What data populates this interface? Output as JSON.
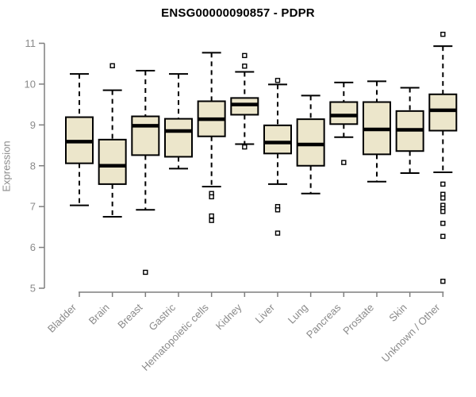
{
  "title": "ENSG00000090857 - PDPR",
  "colors": {
    "box_fill": "#ece6cb",
    "box_stroke": "#000000",
    "median_stroke": "#000000",
    "outlier_stroke": "#000000",
    "outlier_fill": "#ffffff",
    "axis_line": "#7f7f7f",
    "tick_label": "#8a8a8a",
    "title_color": "#000000",
    "background": "#ffffff"
  },
  "chart_data": {
    "type": "boxplot",
    "title": "ENSG00000090857 - PDPR",
    "xlabel": "",
    "ylabel": "Expression",
    "ylim": [
      5,
      11
    ],
    "yticks": [
      5,
      6,
      7,
      8,
      9,
      10,
      11
    ],
    "grid": false,
    "legend": "none",
    "categories": [
      "Bladder",
      "Brain",
      "Breast",
      "Gastric",
      "Hematopoietic cells",
      "Kidney",
      "Liver",
      "Lung",
      "Pancreas",
      "Prostate",
      "Skin",
      "Unknown / Other"
    ],
    "boxes": [
      {
        "category": "Bladder",
        "whisker_low": 7.03,
        "q1": 8.06,
        "median": 8.59,
        "q3": 9.19,
        "whisker_high": 10.25,
        "outliers": []
      },
      {
        "category": "Brain",
        "whisker_low": 6.75,
        "q1": 7.55,
        "median": 8.0,
        "q3": 8.64,
        "whisker_high": 9.85,
        "outliers": [
          10.45
        ]
      },
      {
        "category": "Breast",
        "whisker_low": 6.92,
        "q1": 8.26,
        "median": 8.98,
        "q3": 9.21,
        "whisker_high": 10.33,
        "outliers": [
          5.39
        ]
      },
      {
        "category": "Gastric",
        "whisker_low": 7.93,
        "q1": 8.22,
        "median": 8.85,
        "q3": 9.15,
        "whisker_high": 10.25,
        "outliers": []
      },
      {
        "category": "Hematopoietic cells",
        "whisker_low": 7.49,
        "q1": 8.72,
        "median": 9.14,
        "q3": 9.58,
        "whisker_high": 10.77,
        "outliers": [
          7.32,
          7.24,
          6.77,
          6.66
        ]
      },
      {
        "category": "Kidney",
        "whisker_low": 8.53,
        "q1": 9.25,
        "median": 9.5,
        "q3": 9.66,
        "whisker_high": 10.3,
        "outliers": [
          10.7,
          10.44,
          8.46
        ]
      },
      {
        "category": "Liver",
        "whisker_low": 7.55,
        "q1": 8.3,
        "median": 8.57,
        "q3": 8.99,
        "whisker_high": 9.99,
        "outliers": [
          10.09,
          7.0,
          6.92,
          6.35
        ]
      },
      {
        "category": "Lung",
        "whisker_low": 7.32,
        "q1": 8.0,
        "median": 8.52,
        "q3": 9.14,
        "whisker_high": 9.72,
        "outliers": []
      },
      {
        "category": "Pancreas",
        "whisker_low": 8.7,
        "q1": 9.02,
        "median": 9.23,
        "q3": 9.56,
        "whisker_high": 10.04,
        "outliers": [
          8.08
        ]
      },
      {
        "category": "Prostate",
        "whisker_low": 7.61,
        "q1": 8.28,
        "median": 8.89,
        "q3": 9.56,
        "whisker_high": 10.07,
        "outliers": []
      },
      {
        "category": "Skin",
        "whisker_low": 7.82,
        "q1": 8.36,
        "median": 8.88,
        "q3": 9.34,
        "whisker_high": 9.91,
        "outliers": []
      },
      {
        "category": "Unknown / Other",
        "whisker_low": 7.84,
        "q1": 8.86,
        "median": 9.36,
        "q3": 9.75,
        "whisker_high": 10.93,
        "outliers": [
          11.22,
          7.55,
          7.3,
          7.21,
          7.03,
          6.95,
          6.88,
          6.59,
          6.27,
          5.17
        ]
      }
    ]
  }
}
